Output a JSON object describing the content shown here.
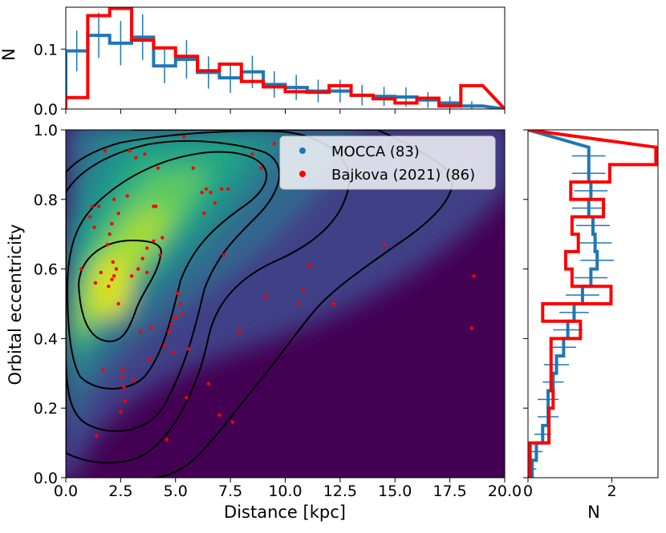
{
  "chart_data": [
    {
      "panel": "main",
      "type": "scatter",
      "xlabel": "Distance [kpc]",
      "ylabel": "Orbital eccentricity",
      "xlim": [
        0,
        20
      ],
      "ylim": [
        0,
        1
      ],
      "x_ticks": [
        "0.0",
        "2.5",
        "5.0",
        "7.5",
        "10.0",
        "12.5",
        "15.0",
        "17.5",
        "20.0"
      ],
      "y_ticks": [
        "0.0",
        "0.2",
        "0.4",
        "0.6",
        "0.8",
        "1.0"
      ],
      "background": "kernel density estimate, viridis colormap, peak near (2.2, 0.55)",
      "contour_color": "#000000",
      "legend": {
        "placement": "top-right",
        "entries": [
          {
            "label": "MOCCA (83)",
            "color": "#1f77b4"
          },
          {
            "label": "Bajkova (2021) (86)",
            "color": "#ff0000"
          }
        ]
      },
      "series": [
        {
          "name": "Bajkova (2021) (86)",
          "color": "#ff0000",
          "points": [
            [
              0.7,
              0.6
            ],
            [
              1.1,
              0.75
            ],
            [
              1.2,
              0.78
            ],
            [
              1.3,
              0.72
            ],
            [
              1.35,
              0.56
            ],
            [
              1.4,
              0.12
            ],
            [
              1.5,
              0.78
            ],
            [
              1.6,
              0.59
            ],
            [
              1.7,
              0.31
            ],
            [
              1.8,
              0.94
            ],
            [
              1.9,
              0.67
            ],
            [
              1.95,
              0.55
            ],
            [
              2.0,
              0.7
            ],
            [
              2.1,
              0.73
            ],
            [
              2.1,
              0.57
            ],
            [
              2.15,
              0.62
            ],
            [
              2.2,
              0.58
            ],
            [
              2.2,
              0.8
            ],
            [
              2.3,
              0.6
            ],
            [
              2.4,
              0.76
            ],
            [
              2.4,
              0.5
            ],
            [
              2.5,
              0.19
            ],
            [
              2.55,
              0.29
            ],
            [
              2.6,
              0.31
            ],
            [
              2.65,
              0.26
            ],
            [
              2.7,
              0.22
            ],
            [
              2.8,
              0.81
            ],
            [
              2.9,
              0.94
            ],
            [
              3.0,
              0.58
            ],
            [
              3.1,
              0.28
            ],
            [
              3.2,
              0.92
            ],
            [
              3.3,
              0.6
            ],
            [
              3.4,
              0.42
            ],
            [
              3.5,
              0.63
            ],
            [
              3.6,
              0.93
            ],
            [
              3.7,
              0.66
            ],
            [
              3.7,
              0.59
            ],
            [
              3.8,
              0.34
            ],
            [
              3.9,
              0.43
            ],
            [
              4.0,
              0.68
            ],
            [
              4.0,
              0.78
            ],
            [
              4.1,
              0.78
            ],
            [
              4.2,
              0.89
            ],
            [
              4.3,
              0.64
            ],
            [
              4.4,
              0.69
            ],
            [
              4.5,
              0.38
            ],
            [
              4.6,
              0.11
            ],
            [
              4.7,
              0.42
            ],
            [
              4.8,
              0.44
            ],
            [
              4.9,
              0.36
            ],
            [
              5.0,
              0.46
            ],
            [
              5.1,
              0.53
            ],
            [
              5.2,
              0.5
            ],
            [
              5.3,
              0.47
            ],
            [
              5.4,
              0.98
            ],
            [
              5.5,
              0.23
            ],
            [
              5.6,
              0.37
            ],
            [
              5.8,
              0.89
            ],
            [
              6.2,
              0.82
            ],
            [
              6.3,
              0.76
            ],
            [
              6.4,
              0.83
            ],
            [
              6.5,
              0.27
            ],
            [
              6.6,
              0.82
            ],
            [
              6.8,
              0.79
            ],
            [
              7.0,
              0.18
            ],
            [
              7.1,
              0.83
            ],
            [
              7.2,
              0.64
            ],
            [
              7.4,
              0.83
            ],
            [
              7.6,
              0.16
            ],
            [
              7.9,
              0.42
            ],
            [
              8.5,
              0.93
            ],
            [
              8.9,
              0.89
            ],
            [
              9.1,
              0.52
            ],
            [
              9.5,
              0.96
            ],
            [
              10.2,
              0.96
            ],
            [
              10.6,
              0.5
            ],
            [
              10.8,
              0.54
            ],
            [
              11.1,
              0.61
            ],
            [
              11.6,
              0.97
            ],
            [
              12.2,
              0.5
            ],
            [
              12.3,
              0.95
            ],
            [
              14.5,
              0.67
            ],
            [
              18.3,
              0.94
            ],
            [
              18.5,
              0.43
            ],
            [
              18.6,
              0.58
            ]
          ]
        }
      ]
    },
    {
      "panel": "top",
      "type": "histogram",
      "ylabel": "N",
      "xlim": [
        0,
        20
      ],
      "ylim": [
        0,
        0.17
      ],
      "y_ticks": [
        "0.0",
        "0.1"
      ],
      "bin_edges": [
        0,
        1,
        2,
        3,
        4,
        5,
        6,
        7,
        8,
        9,
        10,
        11,
        12,
        13,
        14,
        15,
        16,
        17,
        18,
        19
      ],
      "series": [
        {
          "name": "MOCCA (83)",
          "color": "#1f77b4",
          "values": [
            0.097,
            0.123,
            0.11,
            0.12,
            0.072,
            0.083,
            0.061,
            0.052,
            0.062,
            0.041,
            0.036,
            0.03,
            0.03,
            0.023,
            0.021,
            0.02,
            0.015,
            0.01,
            0.005
          ],
          "errors": [
            0.034,
            0.038,
            0.037,
            0.038,
            0.029,
            0.032,
            0.027,
            0.025,
            0.027,
            0.022,
            0.021,
            0.019,
            0.019,
            0.017,
            0.016,
            0.016,
            0.013,
            0.011,
            0.008
          ]
        },
        {
          "name": "Bajkova (2021) (86)",
          "color": "#ff0000",
          "values": [
            0.019,
            0.156,
            0.168,
            0.115,
            0.102,
            0.088,
            0.064,
            0.075,
            0.046,
            0.037,
            0.029,
            0.028,
            0.039,
            0.023,
            0.017,
            0.01,
            0.018,
            0.005,
            0.039
          ]
        }
      ]
    },
    {
      "panel": "right",
      "type": "histogram",
      "orientation": "horizontal",
      "xlabel": "N",
      "xlim": [
        0,
        3.1
      ],
      "x_ticks": [
        "0",
        "2"
      ],
      "bin_edges": [
        0,
        0.05,
        0.1,
        0.15,
        0.2,
        0.25,
        0.3,
        0.35,
        0.4,
        0.45,
        0.5,
        0.55,
        0.6,
        0.65,
        0.7,
        0.75,
        0.8,
        0.85,
        0.9,
        0.95
      ],
      "series": [
        {
          "name": "MOCCA (83)",
          "color": "#1f77b4",
          "values": [
            0.1,
            0.2,
            0.35,
            0.48,
            0.48,
            0.6,
            0.68,
            0.85,
            0.95,
            1.1,
            1.3,
            1.5,
            1.65,
            1.6,
            1.55,
            1.45,
            1.5,
            1.45,
            1.45
          ],
          "errors": [
            0.1,
            0.15,
            0.2,
            0.25,
            0.25,
            0.25,
            0.3,
            0.3,
            0.35,
            0.35,
            0.4,
            0.4,
            0.4,
            0.4,
            0.4,
            0.4,
            0.4,
            0.4,
            0.4
          ]
        },
        {
          "name": "Bajkova (2021) (86)",
          "color": "#ff0000",
          "values": [
            0.05,
            0.05,
            0.5,
            0.5,
            0.6,
            0.55,
            0.55,
            0.55,
            1.25,
            0.35,
            1.98,
            1.05,
            0.9,
            1.2,
            1.05,
            1.8,
            1.02,
            1.95,
            3.05
          ]
        }
      ]
    }
  ]
}
